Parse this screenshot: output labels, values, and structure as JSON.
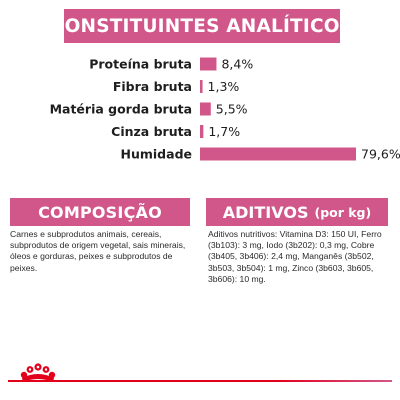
{
  "analytic": {
    "title": "CONSTITUINTES ANALÍTICOS"
  },
  "chart_data": {
    "type": "bar",
    "orientation": "horizontal",
    "categories": [
      "Proteína bruta",
      "Fibra bruta",
      "Matéria gorda bruta",
      "Cinza bruta",
      "Humidade"
    ],
    "values": [
      8.4,
      1.3,
      5.5,
      1.7,
      79.6
    ],
    "value_labels": [
      "8,4%",
      "1,3%",
      "5,5%",
      "1,7%",
      "79,6%"
    ],
    "title": "CONSTITUINTES ANALÍTICOS",
    "xlabel": "",
    "ylabel": "",
    "xlim": [
      0,
      79.6
    ],
    "grid": false,
    "legend": "none",
    "bar_color": "#d1578a"
  },
  "composicao": {
    "title": "COMPOSIÇÃO",
    "text": "Carnes e subprodutos animais, cereais, subprodutos de origem vegetal, sais minerais, óleos e gorduras, peixes e subprodutos de peixes."
  },
  "aditivos": {
    "title": "ADITIVOS",
    "title_unit": "(por kg)",
    "text": "Aditivos nutritivos: Vitamina D3: 150 UI, Ferro (3b103): 3 mg, Iodo (3b202): 0,3 mg, Cobre (3b405, 3b406): 2,4 mg, Manganês (3b502, 3b503, 3b504): 1 mg, Zinco (3b603, 3b605, 3b606): 10 mg."
  },
  "colors": {
    "accent": "#d1578a",
    "footer_red": "#e3001b"
  },
  "footer": {
    "logo": "royal-canin-crown-icon"
  }
}
